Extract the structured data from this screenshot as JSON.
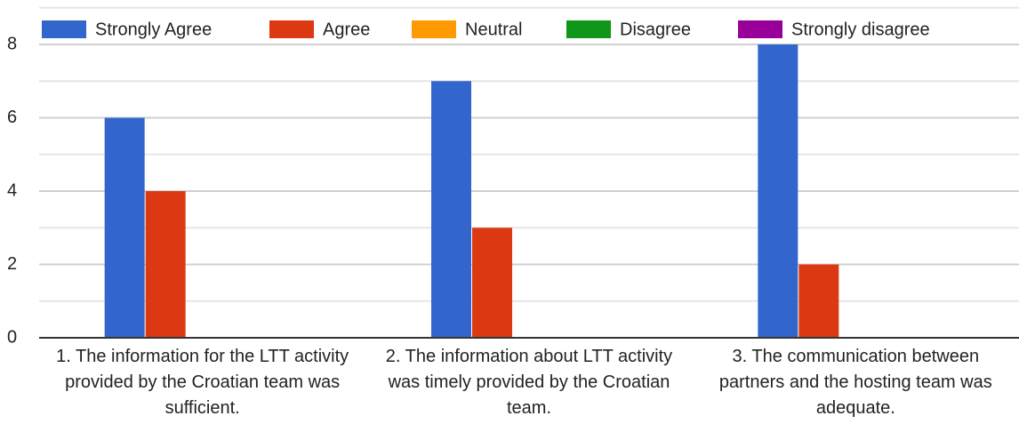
{
  "chart_data": {
    "type": "bar",
    "categories": [
      "1. The information for the LTT activity provided by the Croatian team was sufficient.",
      "2. The information about LTT activity was timely provided by the Croatian team.",
      "3. The communication between partners and the hosting team was adequate."
    ],
    "series": [
      {
        "name": "Strongly Agree",
        "color": "#3366cc",
        "values": [
          6,
          7,
          8
        ]
      },
      {
        "name": "Agree",
        "color": "#dc3912",
        "values": [
          4,
          3,
          2
        ]
      },
      {
        "name": "Neutral",
        "color": "#ff9900",
        "values": [
          0,
          0,
          0
        ]
      },
      {
        "name": "Disagree",
        "color": "#109618",
        "values": [
          0,
          0,
          0
        ]
      },
      {
        "name": "Strongly disagree",
        "color": "#990099",
        "values": [
          0,
          0,
          0
        ]
      }
    ],
    "ylim": [
      0,
      9
    ],
    "yticks": [
      0,
      2,
      4,
      6,
      8
    ],
    "minor_yticks": [
      1,
      3,
      5,
      7,
      9
    ],
    "grid": true,
    "legend": "top"
  }
}
